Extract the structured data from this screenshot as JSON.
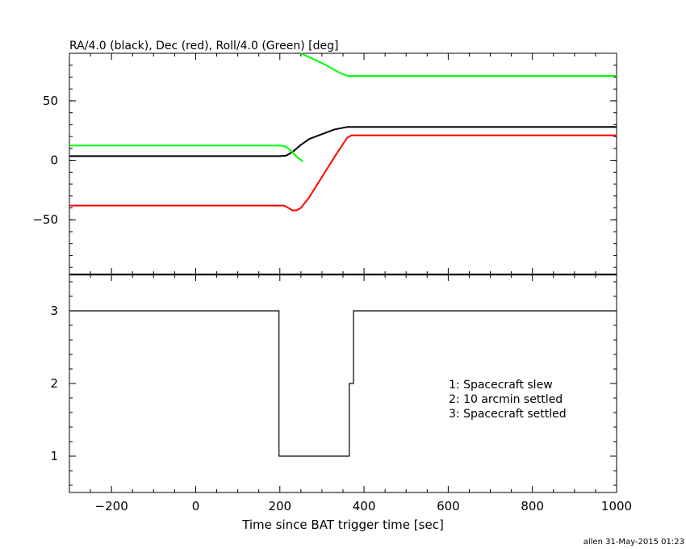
{
  "chart_data": [
    {
      "type": "line",
      "title": "RA/4.0 (black), Dec (red), Roll/4.0 (Green) [deg]",
      "xlim": [
        -300,
        1000
      ],
      "ylim": [
        -96,
        90
      ],
      "yticks": [
        -50,
        0,
        50
      ],
      "ytick_labels": [
        "−50",
        "0",
        "50"
      ],
      "grid": false,
      "series": [
        {
          "color": "#000000",
          "x": [
            -300,
            -100,
            0,
            100,
            200,
            215,
            230,
            250,
            270,
            300,
            330,
            360,
            370,
            500,
            700,
            1000
          ],
          "y": [
            3.5,
            3.5,
            3.5,
            3.5,
            3.5,
            4,
            7,
            13,
            18,
            22,
            26,
            28,
            28,
            28,
            28,
            28
          ]
        },
        {
          "color": "#ff0000",
          "x": [
            -300,
            -100,
            0,
            100,
            200,
            210,
            220,
            230,
            240,
            250,
            270,
            300,
            330,
            360,
            370,
            500,
            700,
            1000
          ],
          "y": [
            -38,
            -38,
            -38,
            -38,
            -38,
            -38,
            -40,
            -42,
            -42,
            -40,
            -31,
            -14,
            3,
            19,
            21,
            21,
            21,
            21
          ]
        },
        {
          "color": "#00ff00",
          "x": [
            -300,
            -100,
            0,
            100,
            200,
            210,
            220,
            230,
            240,
            255
          ],
          "y": [
            12.5,
            12.5,
            12.5,
            12.5,
            12.5,
            12,
            10,
            7,
            3,
            -1
          ]
        },
        {
          "color": "#00ff00",
          "x": [
            250,
            280,
            310,
            340,
            360,
            370,
            500,
            700,
            1000
          ],
          "y": [
            90,
            85,
            80,
            74,
            71,
            71,
            71,
            71,
            71
          ]
        }
      ]
    },
    {
      "type": "line",
      "xlabel": "Time since BAT trigger time [sec]",
      "xlim": [
        -300,
        1000
      ],
      "ylim": [
        0.5,
        3.5
      ],
      "xticks": [
        -200,
        0,
        200,
        400,
        600,
        800,
        1000
      ],
      "xtick_labels": [
        "−200",
        "0",
        "200",
        "400",
        "600",
        "800",
        "1000"
      ],
      "yticks": [
        1,
        2,
        3
      ],
      "ytick_labels": [
        "1",
        "2",
        "3"
      ],
      "grid": false,
      "annotations": [
        "1: Spacecraft slew",
        "2: 10 arcmin settled",
        "3: Spacecraft settled"
      ],
      "series": [
        {
          "color": "#000000",
          "x": [
            -300,
            198,
            198,
            365,
            365,
            375,
            375,
            1000
          ],
          "y": [
            3,
            3,
            1,
            1,
            2,
            2,
            3,
            3
          ]
        }
      ]
    }
  ],
  "footer": "allen 31-May-2015 01:23"
}
